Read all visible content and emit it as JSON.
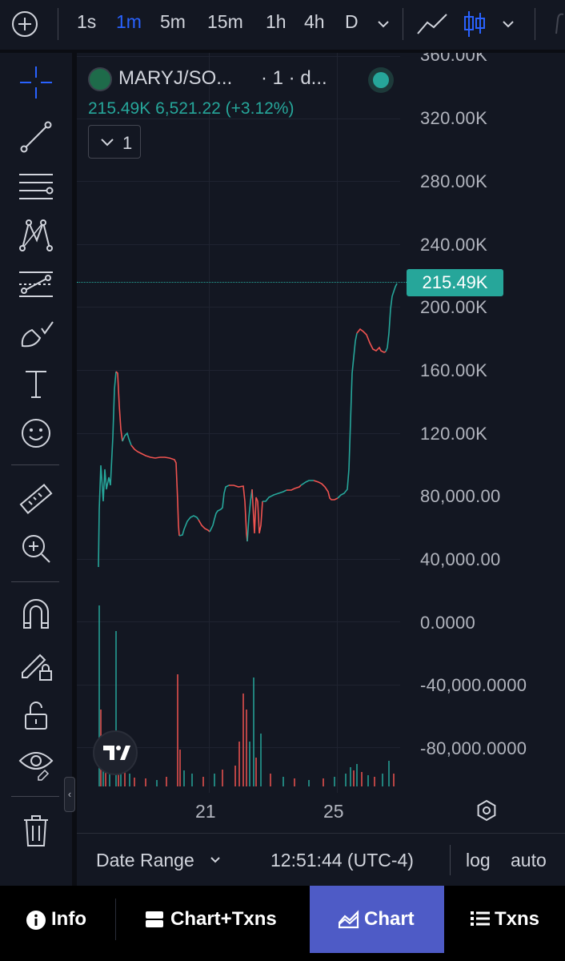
{
  "toolbar": {
    "timeframes": [
      "1s",
      "1m",
      "5m",
      "15m",
      "1h",
      "4h",
      "D"
    ],
    "active_timeframe": "1m"
  },
  "legend": {
    "symbol": "MARYJ/SO...",
    "interval": "· 1 · d...",
    "price": "215.49K",
    "change": "6,521.22 (+3.12%)",
    "indicator_count": "1"
  },
  "price_axis": {
    "labels": [
      "360.00K",
      "320.00K",
      "280.00K",
      "240.00K",
      "200.00K",
      "160.00K",
      "120.00K",
      "80,000.00",
      "40,000.00",
      "0.0000",
      "-40,000.0000",
      "-80,000.0000"
    ],
    "current_price": "215.49K"
  },
  "time_axis": {
    "labels": [
      "21",
      "25"
    ]
  },
  "bottom": {
    "date_range": "Date Range",
    "clock": "12:51:44 (UTC-4)",
    "log": "log",
    "auto": "auto"
  },
  "tabs": [
    "Info",
    "Chart+Txns",
    "Chart",
    "Txns"
  ],
  "active_tab": "Chart",
  "colors": {
    "up": "#26a69a",
    "down": "#ef5350",
    "accent": "#2962ff",
    "tab_active": "#4e5bc6",
    "background": "#131722"
  },
  "icons": [
    "plus-circle-icon",
    "line-chart-icon",
    "candles-icon",
    "chevron-down-icon",
    "crosshair-icon",
    "trend-line-icon",
    "fib-lines-icon",
    "pattern-icon",
    "projection-icon",
    "brush-icon",
    "text-icon",
    "emoji-icon",
    "ruler-icon",
    "zoom-in-icon",
    "magnet-icon",
    "lock-drawings-icon",
    "unlock-icon",
    "eye-icon",
    "trash-icon",
    "settings-icon",
    "info-icon",
    "chart-txns-icon",
    "area-chart-icon",
    "list-icon"
  ]
}
